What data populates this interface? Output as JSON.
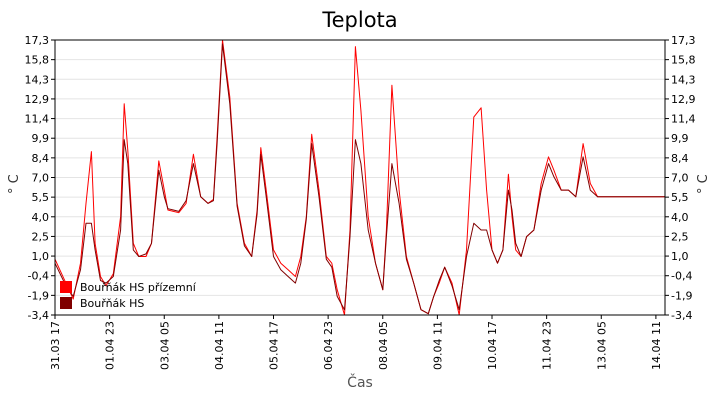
{
  "chart_data": {
    "type": "line",
    "title": "Teplota",
    "xlabel": "Čas",
    "ylabel": "° C",
    "ylim": [
      -3.4,
      17.3
    ],
    "grid": true,
    "legend_position": "bottom-left",
    "yticks": [
      "17,3",
      "15,8",
      "14,3",
      "12,9",
      "11,4",
      "9,9",
      "8,4",
      "7,0",
      "5,5",
      "4,0",
      "2,5",
      "1,0",
      "-0,4",
      "-1,9",
      "-3,4"
    ],
    "xticks": [
      "31.03 17",
      "01.04 23",
      "03.04 05",
      "04.04 11",
      "05.04 17",
      "06.04 23",
      "08.04 05",
      "09.04 11",
      "10.04 17",
      "11.04 23",
      "13.04 05",
      "14.04 11"
    ],
    "series": [
      {
        "name": "Bouřňák HS přízemní",
        "color": "#ff0000",
        "x": [
          "31.03 17",
          "31.03 23",
          "01.04 03",
          "01.04 07",
          "01.04 10",
          "01.04 13",
          "01.04 15",
          "01.04 18",
          "01.04 21",
          "02.04 01",
          "02.04 05",
          "02.04 07",
          "02.04 09",
          "02.04 12",
          "02.04 15",
          "02.04 19",
          "02.04 22",
          "03.04 02",
          "03.04 05",
          "03.04 07",
          "03.04 10",
          "03.04 13",
          "03.04 17",
          "03.04 21",
          "04.04 01",
          "04.04 05",
          "04.04 08",
          "04.04 10",
          "04.04 13",
          "04.04 17",
          "04.04 21",
          "05.04 01",
          "05.04 05",
          "05.04 08",
          "05.04 10",
          "05.04 13",
          "05.04 17",
          "05.04 21",
          "06.04 01",
          "06.04 05",
          "06.04 08",
          "06.04 11",
          "06.04 14",
          "06.04 18",
          "06.04 22",
          "07.04 01",
          "07.04 04",
          "07.04 08",
          "07.04 11",
          "07.04 14",
          "07.04 17",
          "07.04 21",
          "08.04 01",
          "08.04 05",
          "08.04 07",
          "08.04 10",
          "08.04 14",
          "08.04 18",
          "08.04 22",
          "09.04 02",
          "09.04 06",
          "09.04 09",
          "09.04 12",
          "09.04 15",
          "09.04 19",
          "09.04 23",
          "10.04 03",
          "10.04 07",
          "10.04 11",
          "10.04 14",
          "10.04 17",
          "10.04 20",
          "10.04 23",
          "11.04 02",
          "11.04 04",
          "11.04 06",
          "11.04 09",
          "11.04 12",
          "11.04 16",
          "11.04 20",
          "12.04 00",
          "12.04 03",
          "12.04 07",
          "12.04 11",
          "12.04 15",
          "12.04 19",
          "12.04 23",
          "13.04 03",
          "13.04 07",
          "13.04 10",
          "13.04 12",
          "13.04 15",
          "13.04 19",
          "13.04 23",
          "14.04 03",
          "14.04 07",
          "14.04 10",
          "14.04 13",
          "14.04 16"
        ],
        "values": [
          0.8,
          -1.0,
          -2.2,
          0.5,
          5.0,
          8.9,
          2.0,
          -0.5,
          -1.2,
          -0.3,
          4.0,
          12.5,
          9.0,
          2.0,
          1.0,
          1.0,
          2.0,
          8.2,
          6.0,
          4.5,
          4.4,
          4.3,
          5.0,
          8.7,
          5.5,
          5.0,
          5.3,
          10.0,
          17.3,
          13.0,
          5.0,
          2.0,
          1.0,
          4.5,
          9.2,
          6.0,
          1.5,
          0.5,
          0.0,
          -0.5,
          1.0,
          4.0,
          10.2,
          6.0,
          1.0,
          0.5,
          -1.5,
          -3.4,
          3.0,
          16.8,
          12.0,
          4.0,
          0.5,
          -1.5,
          3.0,
          13.9,
          6.0,
          1.0,
          -1.0,
          -3.0,
          -3.3,
          -2.0,
          -1.0,
          0.2,
          -1.0,
          -3.4,
          1.5,
          11.5,
          12.2,
          6.0,
          1.5,
          0.5,
          1.5,
          7.2,
          4.0,
          1.5,
          1.0,
          2.5,
          3.0,
          6.5,
          8.5,
          7.5,
          6.0,
          6.0,
          5.5,
          9.5,
          6.5,
          5.5,
          5.5,
          5.5,
          5.5,
          5.5,
          5.5,
          5.5,
          5.5,
          5.5,
          5.5,
          5.5,
          5.5
        ]
      },
      {
        "name": "Bouřňák HS",
        "color": "#800000",
        "x": [
          "31.03 17",
          "31.03 23",
          "01.04 03",
          "01.04 07",
          "01.04 10",
          "01.04 13",
          "01.04 15",
          "01.04 18",
          "01.04 21",
          "02.04 01",
          "02.04 05",
          "02.04 07",
          "02.04 09",
          "02.04 12",
          "02.04 15",
          "02.04 19",
          "02.04 22",
          "03.04 02",
          "03.04 05",
          "03.04 07",
          "03.04 10",
          "03.04 13",
          "03.04 17",
          "03.04 21",
          "04.04 01",
          "04.04 05",
          "04.04 08",
          "04.04 10",
          "04.04 13",
          "04.04 17",
          "04.04 21",
          "05.04 01",
          "05.04 05",
          "05.04 08",
          "05.04 10",
          "05.04 13",
          "05.04 17",
          "05.04 21",
          "06.04 01",
          "06.04 05",
          "06.04 08",
          "06.04 11",
          "06.04 14",
          "06.04 18",
          "06.04 22",
          "07.04 01",
          "07.04 04",
          "07.04 08",
          "07.04 11",
          "07.04 14",
          "07.04 17",
          "07.04 21",
          "08.04 01",
          "08.04 05",
          "08.04 07",
          "08.04 10",
          "08.04 14",
          "08.04 18",
          "08.04 22",
          "09.04 02",
          "09.04 06",
          "09.04 09",
          "09.04 12",
          "09.04 15",
          "09.04 19",
          "09.04 23",
          "10.04 03",
          "10.04 07",
          "10.04 11",
          "10.04 14",
          "10.04 17",
          "10.04 20",
          "10.04 23",
          "11.04 02",
          "11.04 04",
          "11.04 06",
          "11.04 09",
          "11.04 12",
          "11.04 16",
          "11.04 20",
          "12.04 00",
          "12.04 03",
          "12.04 07",
          "12.04 11",
          "12.04 15",
          "12.04 19",
          "12.04 23",
          "13.04 03",
          "13.04 07",
          "13.04 10",
          "13.04 12",
          "13.04 15",
          "13.04 19",
          "13.04 23",
          "14.04 03",
          "14.04 07",
          "14.04 10",
          "14.04 13",
          "14.04 16"
        ],
        "values": [
          0.5,
          -1.2,
          -2.0,
          0.0,
          3.5,
          3.5,
          1.5,
          -0.8,
          -1.0,
          -0.5,
          3.0,
          9.8,
          8.0,
          1.5,
          1.0,
          1.2,
          2.0,
          7.5,
          5.5,
          4.6,
          4.5,
          4.4,
          5.2,
          8.0,
          5.5,
          5.0,
          5.2,
          9.5,
          17.0,
          12.5,
          4.8,
          1.8,
          1.0,
          4.2,
          8.7,
          5.5,
          1.0,
          0.0,
          -0.5,
          -1.0,
          0.5,
          3.8,
          9.5,
          5.5,
          0.8,
          0.2,
          -2.0,
          -3.0,
          2.5,
          9.8,
          8.0,
          3.0,
          0.5,
          -1.5,
          2.5,
          8.0,
          5.0,
          0.8,
          -1.0,
          -3.0,
          -3.3,
          -2.0,
          -0.8,
          0.2,
          -1.2,
          -3.0,
          1.0,
          3.5,
          3.0,
          3.0,
          1.5,
          0.5,
          1.5,
          6.0,
          4.5,
          2.0,
          1.0,
          2.5,
          3.0,
          6.0,
          8.0,
          7.0,
          6.0,
          6.0,
          5.5,
          8.5,
          6.0,
          5.5,
          5.5,
          5.5,
          5.5,
          5.5,
          5.5,
          5.5,
          5.5,
          5.5,
          5.5,
          5.5,
          5.5
        ]
      }
    ]
  }
}
